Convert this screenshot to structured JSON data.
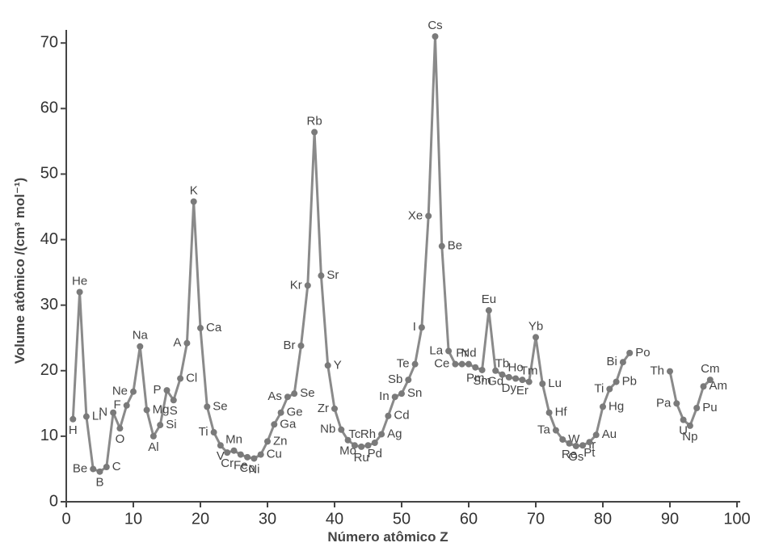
{
  "chart_data": {
    "type": "line",
    "x_label": "Número atômico  Z",
    "y_label": "Volume atômico  /(cm³ mol⁻¹)",
    "xlim": [
      0,
      100
    ],
    "xticks": [
      0,
      10,
      20,
      30,
      40,
      50,
      60,
      70,
      80,
      90,
      100
    ],
    "ylim": [
      0,
      72
    ],
    "yticks": [
      0,
      10,
      20,
      30,
      40,
      50,
      60,
      70
    ],
    "color": "#8a8a8a",
    "x": [
      1,
      2,
      3,
      4,
      5,
      6,
      7,
      8,
      9,
      10,
      11,
      12,
      13,
      14,
      15,
      16,
      17,
      18,
      19,
      20,
      21,
      22,
      23,
      24,
      25,
      26,
      27,
      28,
      29,
      30,
      31,
      32,
      33,
      34,
      35,
      36,
      37,
      38,
      39,
      40,
      41,
      42,
      43,
      44,
      45,
      46,
      47,
      48,
      49,
      50,
      51,
      52,
      53,
      54,
      55,
      56,
      57,
      58,
      59,
      60,
      61,
      62,
      63,
      64,
      65,
      66,
      67,
      68,
      69,
      70,
      71,
      72,
      73,
      74,
      75,
      76,
      77,
      78,
      79,
      80,
      81,
      82,
      83,
      84,
      87,
      90,
      91,
      92,
      93,
      94,
      95,
      96
    ],
    "values": [
      12.6,
      32,
      13,
      5,
      4.6,
      5.3,
      13.6,
      11.2,
      14.7,
      16.8,
      23.7,
      14,
      10,
      11.7,
      17,
      15.5,
      18.8,
      24.2,
      45.8,
      26.5,
      14.5,
      10.6,
      8.6,
      7.5,
      7.8,
      7.2,
      6.8,
      6.6,
      7.2,
      9.2,
      11.8,
      13.6,
      16,
      16.5,
      23.8,
      33,
      56.4,
      34.5,
      20.8,
      14.2,
      11,
      9.4,
      8.6,
      8.4,
      8.6,
      9,
      10.3,
      13.1,
      16,
      16.5,
      18.6,
      21,
      26.6,
      43.6,
      71,
      39,
      23,
      21,
      21,
      21,
      20.5,
      20.1,
      29.2,
      20,
      19.4,
      19,
      18.8,
      18.6,
      18.3,
      25.1,
      18,
      13.6,
      10.9,
      9.5,
      8.9,
      8.5,
      8.6,
      9.1,
      10.2,
      14.5,
      17.2,
      18.3,
      21.3,
      22.7,
      null,
      19.9,
      15,
      12.5,
      11.6,
      14.3,
      17.6,
      18.6
    ],
    "labels": [
      "H",
      "He",
      "Li",
      "Be",
      "B",
      "C",
      "N",
      "O",
      "F",
      "Ne",
      "Na",
      "Mg",
      "Al",
      "Si",
      "P",
      "S",
      "Cl",
      "A",
      "K",
      "Ca",
      "Se",
      "Ti",
      "V",
      "Cr",
      "Mn",
      "Fe",
      "Co",
      "Ni",
      "Cu",
      "Zn",
      "Ga",
      "Ge",
      "As",
      "Se",
      "Br",
      "Kr",
      "Rb",
      "Sr",
      "Y",
      "Zr",
      "Nb",
      "Mo",
      "Tc",
      "Ru",
      "Rh",
      "Pd",
      "Ag",
      "Cd",
      "In",
      "Sn",
      "Sb",
      "Te",
      "I",
      "Xe",
      "Cs",
      "Be",
      "La",
      "Ce",
      "Pr",
      "Nd",
      "Pm",
      "Sm",
      "Eu",
      "Gd",
      "Tb",
      "Dy",
      "Ho",
      "Er",
      "Tm",
      "Yb",
      "Lu",
      "Hf",
      "Ta",
      "W",
      "Re",
      "Os",
      "Ir",
      "Pt",
      "Au",
      "Hg",
      "Ti",
      "Pb",
      "Bi",
      "Po",
      null,
      "Th",
      "Pa",
      "U",
      "Np",
      "Pu",
      "Am",
      "Cm"
    ]
  }
}
